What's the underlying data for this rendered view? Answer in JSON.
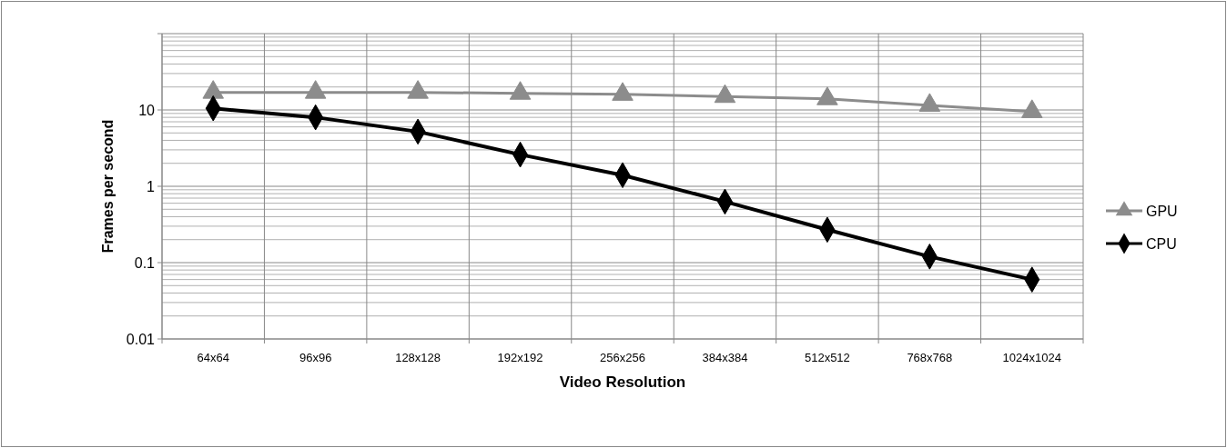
{
  "chart_data": {
    "type": "line",
    "xlabel": "Video Resolution",
    "ylabel": "Frames per second",
    "categories": [
      "64x64",
      "96x96",
      "128x128",
      "192x192",
      "256x256",
      "384x384",
      "512x512",
      "768x768",
      "1024x1024"
    ],
    "series": [
      {
        "name": "GPU",
        "color": "#8c8c8c",
        "marker": "triangle",
        "values": [
          17,
          17,
          17,
          16.5,
          16,
          15,
          14,
          11.5,
          9.5
        ]
      },
      {
        "name": "CPU",
        "color": "#000000",
        "marker": "diamond",
        "values": [
          10.5,
          8,
          5.2,
          2.6,
          1.4,
          0.63,
          0.27,
          0.12,
          0.06
        ]
      }
    ],
    "log": "y",
    "ylim": [
      0.01,
      100
    ],
    "yticks": [
      0.01,
      0.1,
      1,
      10,
      {
        "value": 100,
        "label": null
      }
    ],
    "grid": true,
    "legend": "right",
    "line_style": "solid"
  }
}
